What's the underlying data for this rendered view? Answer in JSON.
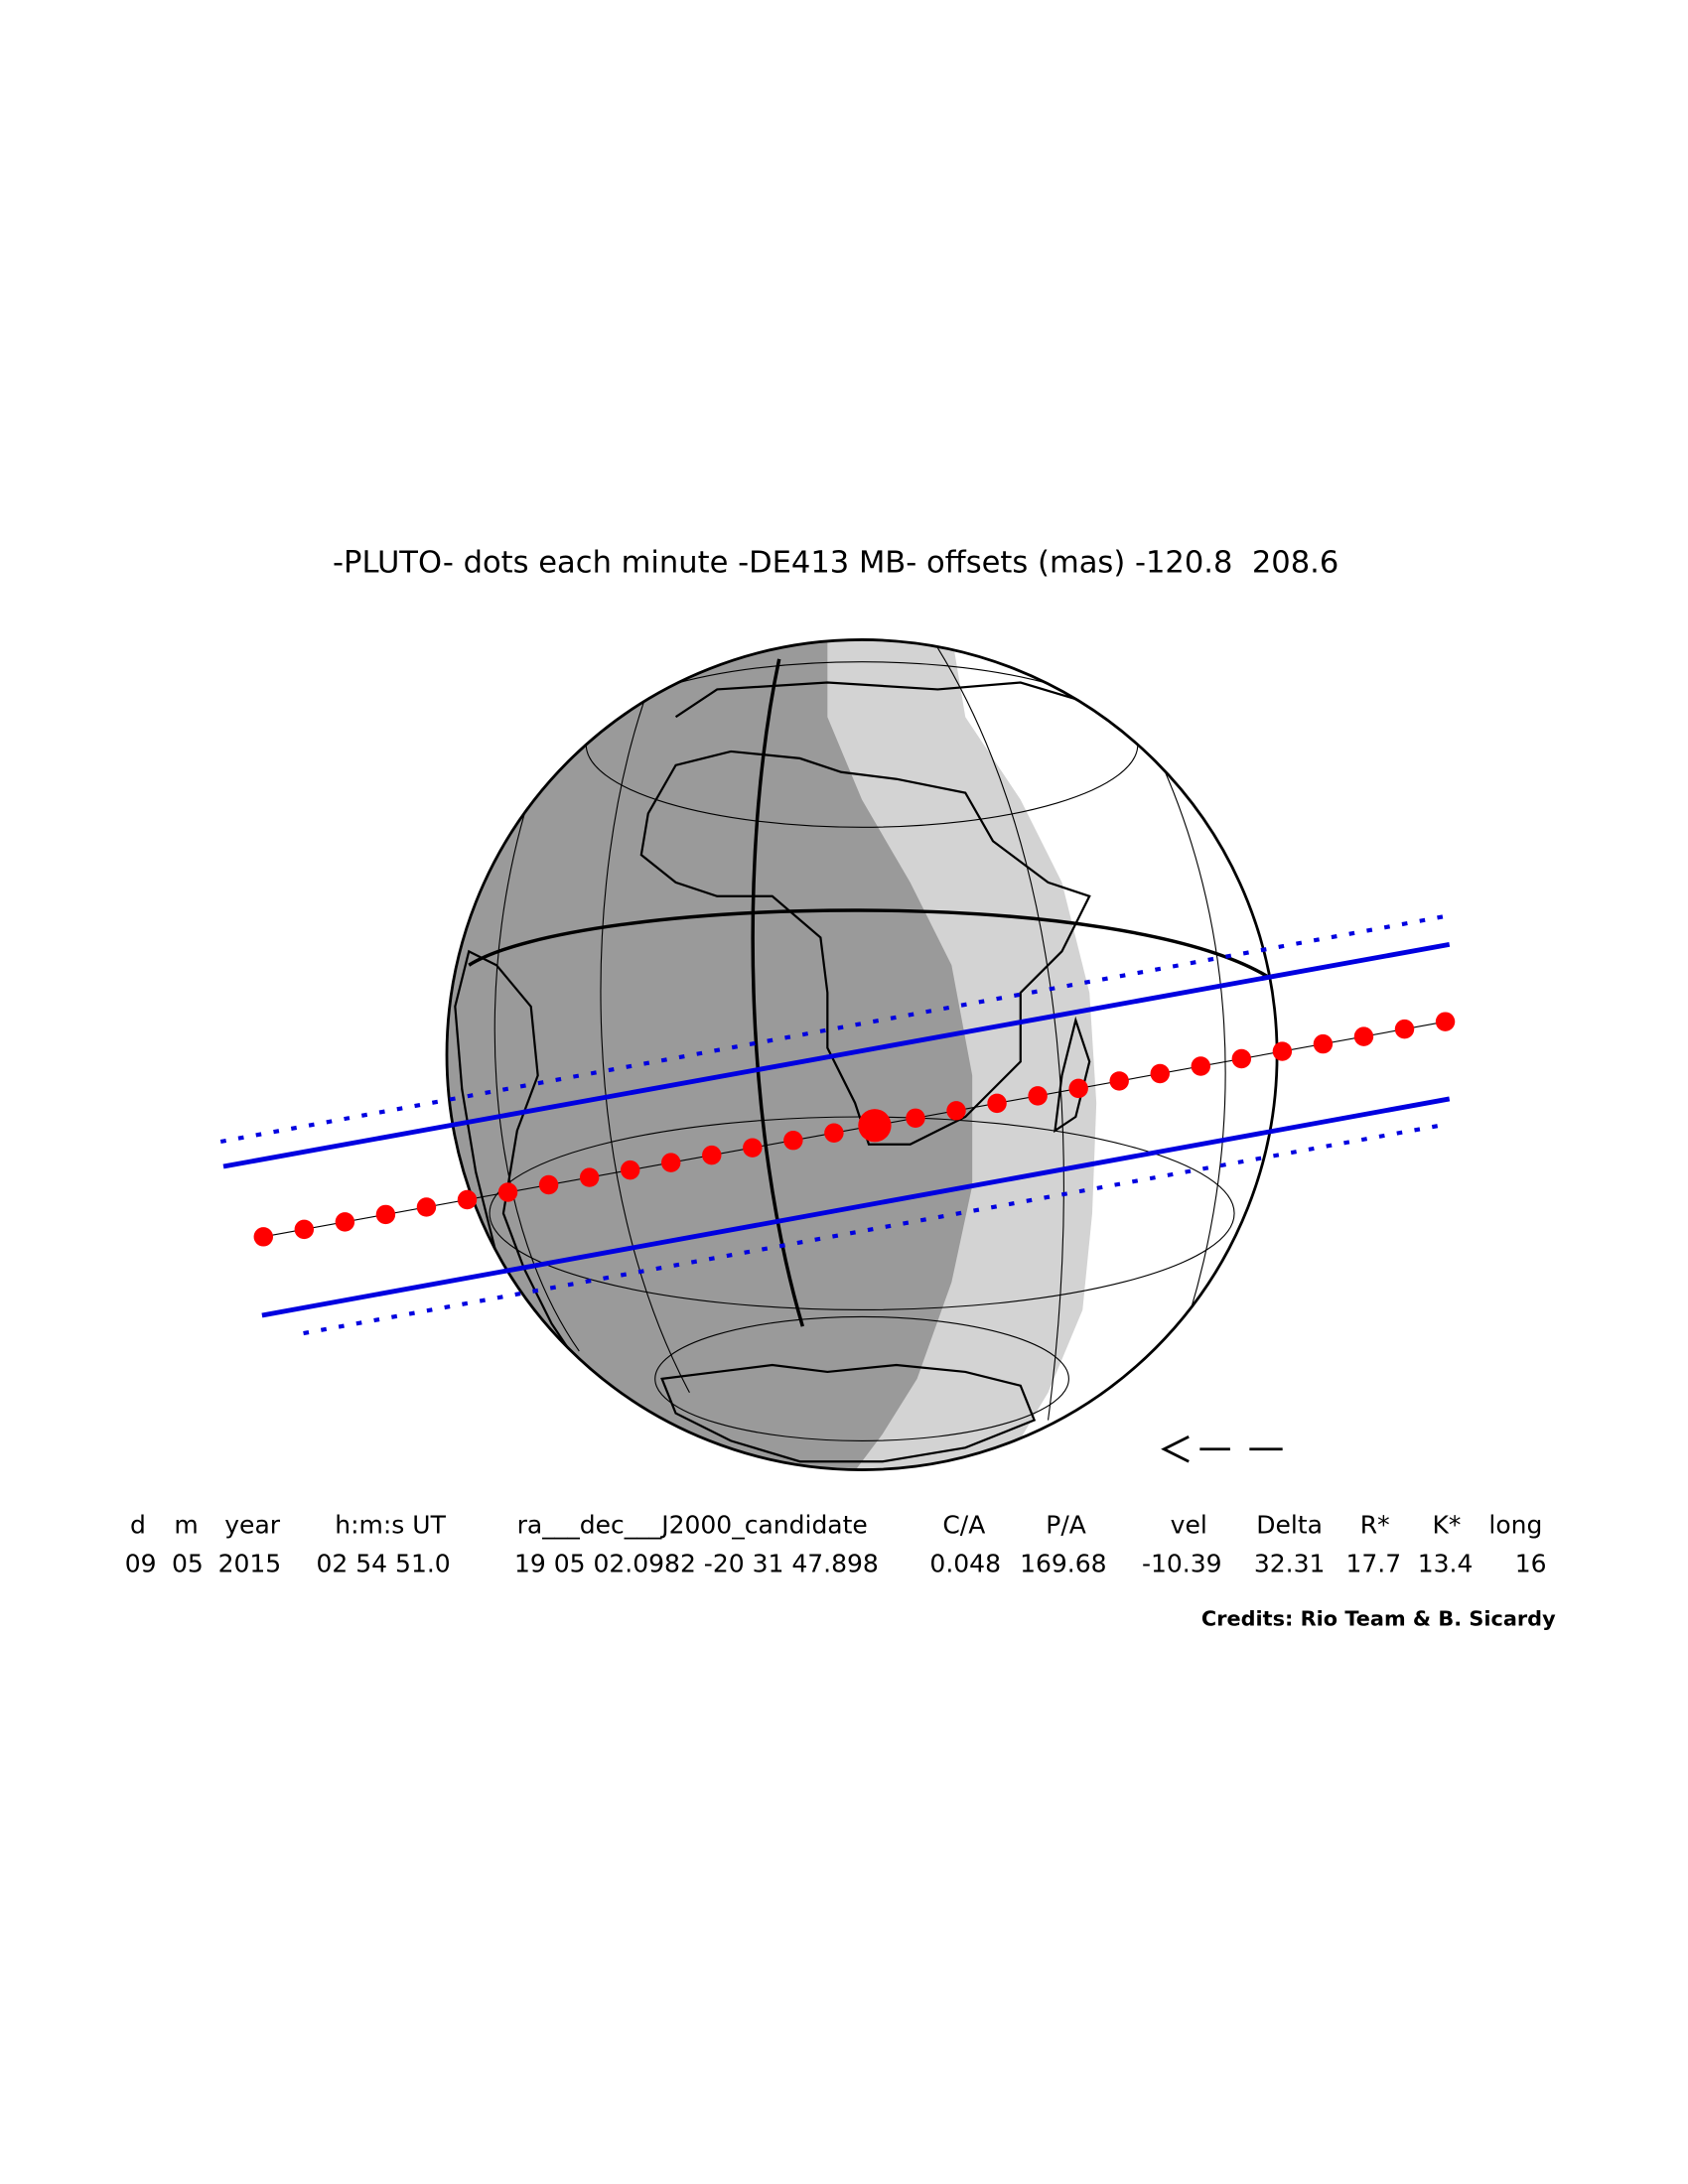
{
  "title": "-PLUTO- dots each minute -DE413 MB- offsets (mas) -120.8  208.6",
  "table": {
    "headers": [
      "d",
      "m",
      "year",
      "h:m:s UT",
      "ra___dec___J2000_candidate",
      "C/A",
      "P/A",
      "vel",
      "Delta",
      "R*",
      "K*",
      "long"
    ],
    "values": [
      "09",
      "05",
      "2015",
      "02 54 51.0",
      "19 05 02.0982 -20 31 47.898",
      "0.048",
      "169.68",
      "-10.39",
      "32.31",
      "17.7",
      "13.4",
      "16"
    ]
  },
  "credits": "Credits: Rio Team & B. Sicardy"
}
